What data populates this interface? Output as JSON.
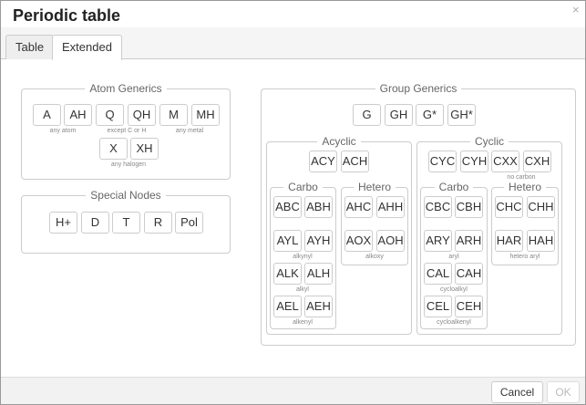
{
  "title": "Periodic table",
  "close_icon": "×",
  "tabs": [
    {
      "label": "Table"
    },
    {
      "label": "Extended",
      "active": true
    }
  ],
  "atom_generics": {
    "legend": "Atom Generics",
    "buttons": [
      "A",
      "AH",
      "Q",
      "QH",
      "M",
      "MH",
      "X",
      "XH"
    ],
    "captions": [
      "any atom",
      "except C or H",
      "any metal",
      "any halogen"
    ]
  },
  "special_nodes": {
    "legend": "Special Nodes",
    "buttons": [
      "H+",
      "D",
      "T",
      "R",
      "Pol"
    ]
  },
  "group_generics": {
    "legend": "Group Generics",
    "buttons": [
      "G",
      "GH",
      "G*",
      "GH*"
    ],
    "acyclic": {
      "legend": "Acyclic",
      "buttons": [
        "ACY",
        "ACH"
      ],
      "carbo": {
        "legend": "Carbo",
        "buttons": [
          "ABC",
          "ABH",
          "AYL",
          "AYH",
          "ALK",
          "ALH",
          "AEL",
          "AEH"
        ],
        "captions": [
          "alkynyl",
          "alkyl",
          "alkenyl"
        ]
      },
      "hetero": {
        "legend": "Hetero",
        "buttons": [
          "AHC",
          "AHH",
          "AOX",
          "AOH"
        ],
        "captions": [
          "alkoxy"
        ]
      }
    },
    "cyclic": {
      "legend": "Cyclic",
      "buttons": [
        "CYC",
        "CYH",
        "CXX",
        "CXH"
      ],
      "captions": [
        "no carbon"
      ],
      "carbo": {
        "legend": "Carbo",
        "buttons": [
          "CBC",
          "CBH",
          "ARY",
          "ARH",
          "CAL",
          "CAH",
          "CEL",
          "CEH"
        ],
        "captions": [
          "aryl",
          "cycloalkyl",
          "cycloalkenyl"
        ]
      },
      "hetero": {
        "legend": "Hetero",
        "buttons": [
          "CHC",
          "CHH",
          "HAR",
          "HAH"
        ],
        "captions": [
          "hetero aryl"
        ]
      }
    }
  },
  "footer": {
    "cancel": "Cancel",
    "ok": "OK",
    "ok_disabled": true
  }
}
